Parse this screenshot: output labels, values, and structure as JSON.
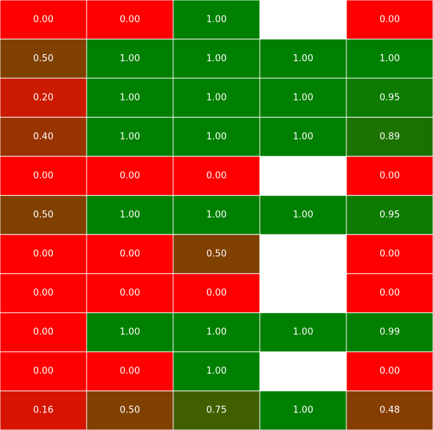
{
  "chart_data": {
    "type": "heatmap",
    "title": "",
    "xlabel": "",
    "ylabel": "",
    "colors": {
      "low": "#ff0000",
      "high": "#008000",
      "missing": "#ffffff",
      "text": "#ffffff",
      "grid": "#ffffff"
    },
    "rows": [
      [
        0.0,
        0.0,
        1.0,
        null,
        0.0
      ],
      [
        0.5,
        1.0,
        1.0,
        1.0,
        1.0
      ],
      [
        0.2,
        1.0,
        1.0,
        1.0,
        0.95
      ],
      [
        0.4,
        1.0,
        1.0,
        1.0,
        0.89
      ],
      [
        0.0,
        0.0,
        0.0,
        null,
        0.0
      ],
      [
        0.5,
        1.0,
        1.0,
        1.0,
        0.95
      ],
      [
        0.0,
        0.0,
        0.5,
        null,
        0.0
      ],
      [
        0.0,
        0.0,
        0.0,
        null,
        0.0
      ],
      [
        0.0,
        1.0,
        1.0,
        1.0,
        0.99
      ],
      [
        0.0,
        0.0,
        1.0,
        null,
        0.0
      ],
      [
        0.16,
        0.5,
        0.75,
        1.0,
        0.48
      ]
    ],
    "labels": [
      [
        "0.00",
        "0.00",
        "1.00",
        "",
        "0.00"
      ],
      [
        "0.50",
        "1.00",
        "1.00",
        "1.00",
        "1.00"
      ],
      [
        "0.20",
        "1.00",
        "1.00",
        "1.00",
        "0.95"
      ],
      [
        "0.40",
        "1.00",
        "1.00",
        "1.00",
        "0.89"
      ],
      [
        "0.00",
        "0.00",
        "0.00",
        "",
        "0.00"
      ],
      [
        "0.50",
        "1.00",
        "1.00",
        "1.00",
        "0.95"
      ],
      [
        "0.00",
        "0.00",
        "0.50",
        "",
        "0.00"
      ],
      [
        "0.00",
        "0.00",
        "0.00",
        "",
        "0.00"
      ],
      [
        "0.00",
        "1.00",
        "1.00",
        "1.00",
        "0.99"
      ],
      [
        "0.00",
        "0.00",
        "1.00",
        "",
        "0.00"
      ],
      [
        "0.16",
        "0.50",
        "0.75",
        "1.00",
        "0.48"
      ]
    ]
  }
}
